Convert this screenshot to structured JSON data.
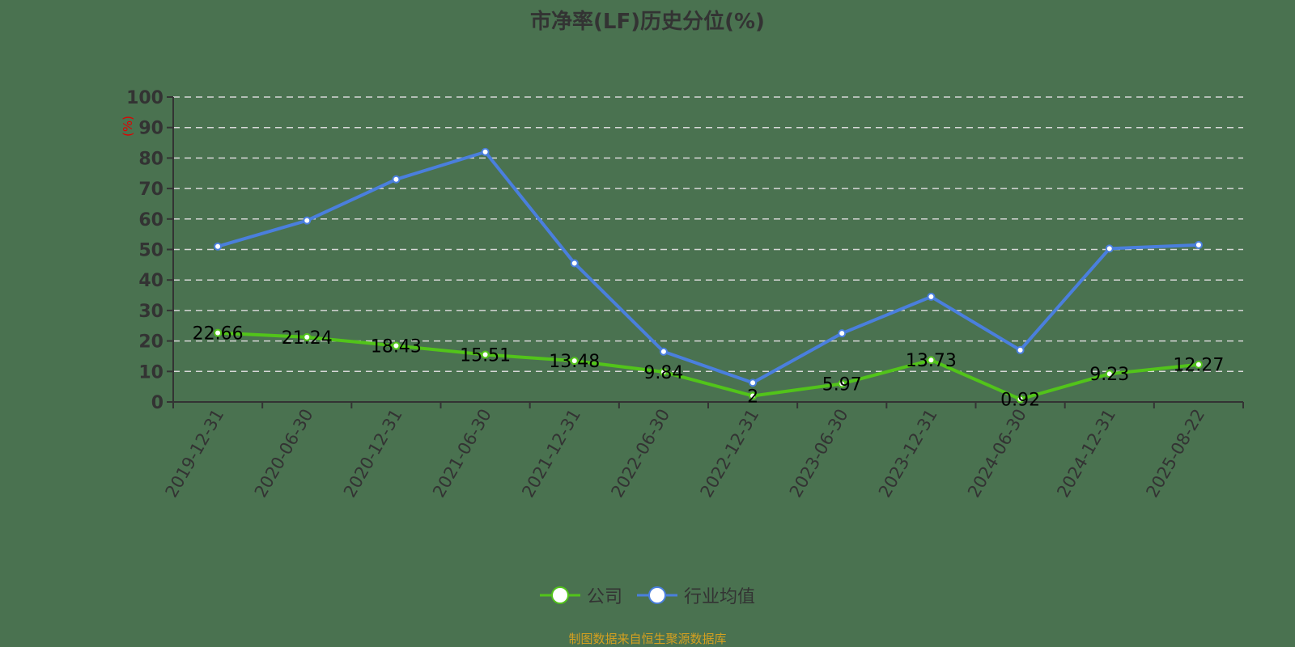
{
  "title": "市净率(LF)历史分位(%)",
  "source": "制图数据来自恒生聚源数据库",
  "legend": [
    {
      "label": "公司",
      "color": "#52c41a"
    },
    {
      "label": "行业均值",
      "color": "#4a7fdd"
    }
  ],
  "chart_data": {
    "type": "line",
    "title": "市净率(LF)历史分位(%)",
    "xlabel": "",
    "ylabel": "(%)",
    "ylim": [
      0,
      100
    ],
    "yticks": [
      0,
      10,
      20,
      30,
      40,
      50,
      60,
      70,
      80,
      90,
      100
    ],
    "grid": true,
    "legend_position": "bottom",
    "categories": [
      "2019-12-31",
      "2020-06-30",
      "2020-12-31",
      "2021-06-30",
      "2021-12-31",
      "2022-06-30",
      "2022-12-31",
      "2023-06-30",
      "2023-12-31",
      "2024-06-30",
      "2024-12-31",
      "2025-08-22"
    ],
    "series": [
      {
        "name": "公司",
        "color": "#52c41a",
        "values": [
          22.66,
          21.24,
          18.43,
          15.51,
          13.48,
          9.84,
          2,
          5.97,
          13.73,
          0.92,
          9.23,
          12.27
        ],
        "labels": [
          "22.66",
          "21.24",
          "18.43",
          "15.51",
          "13.48",
          "9.84",
          "2",
          "5.97",
          "13.73",
          "0.92",
          "9.23",
          "12.27"
        ]
      },
      {
        "name": "行业均值",
        "color": "#4a7fdd",
        "values": [
          51,
          59.5,
          73,
          82,
          45.5,
          16.5,
          6.3,
          22.5,
          34.5,
          17,
          50.3,
          51.5
        ]
      }
    ]
  }
}
